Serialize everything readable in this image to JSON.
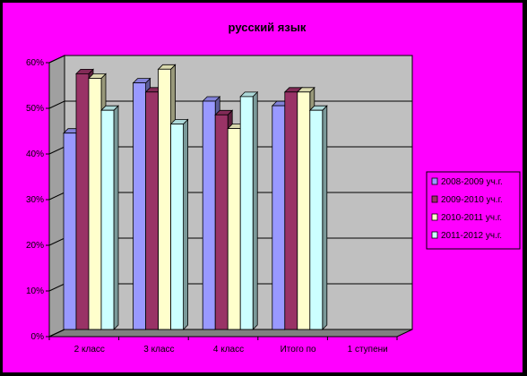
{
  "chart_data": {
    "type": "bar",
    "title": "русский язык",
    "categories": [
      "2 класс",
      "3 класс",
      "4 класс",
      "Итого по",
      "1 ступени"
    ],
    "series": [
      {
        "name": "2008-2009 уч.г.",
        "values": [
          43,
          54,
          50,
          49,
          null
        ]
      },
      {
        "name": "2009-2010 уч.г.",
        "values": [
          56,
          52,
          47,
          52,
          null
        ]
      },
      {
        "name": "2010-2011 уч.г.",
        "values": [
          55,
          57,
          44,
          52,
          null
        ]
      },
      {
        "name": "2011-2012 уч.г.",
        "values": [
          48,
          45,
          51,
          48,
          null
        ]
      }
    ],
    "yticks": [
      "0%",
      "10%",
      "20%",
      "30%",
      "40%",
      "50%",
      "60%"
    ],
    "ylim": [
      0,
      60
    ],
    "grid": true,
    "legend": "right",
    "colors": {
      "background": "#ff00ff",
      "plot_wall": "#c0c0c0",
      "series": [
        "#9999ff",
        "#993366",
        "#ffffcc",
        "#ccffff"
      ]
    }
  }
}
